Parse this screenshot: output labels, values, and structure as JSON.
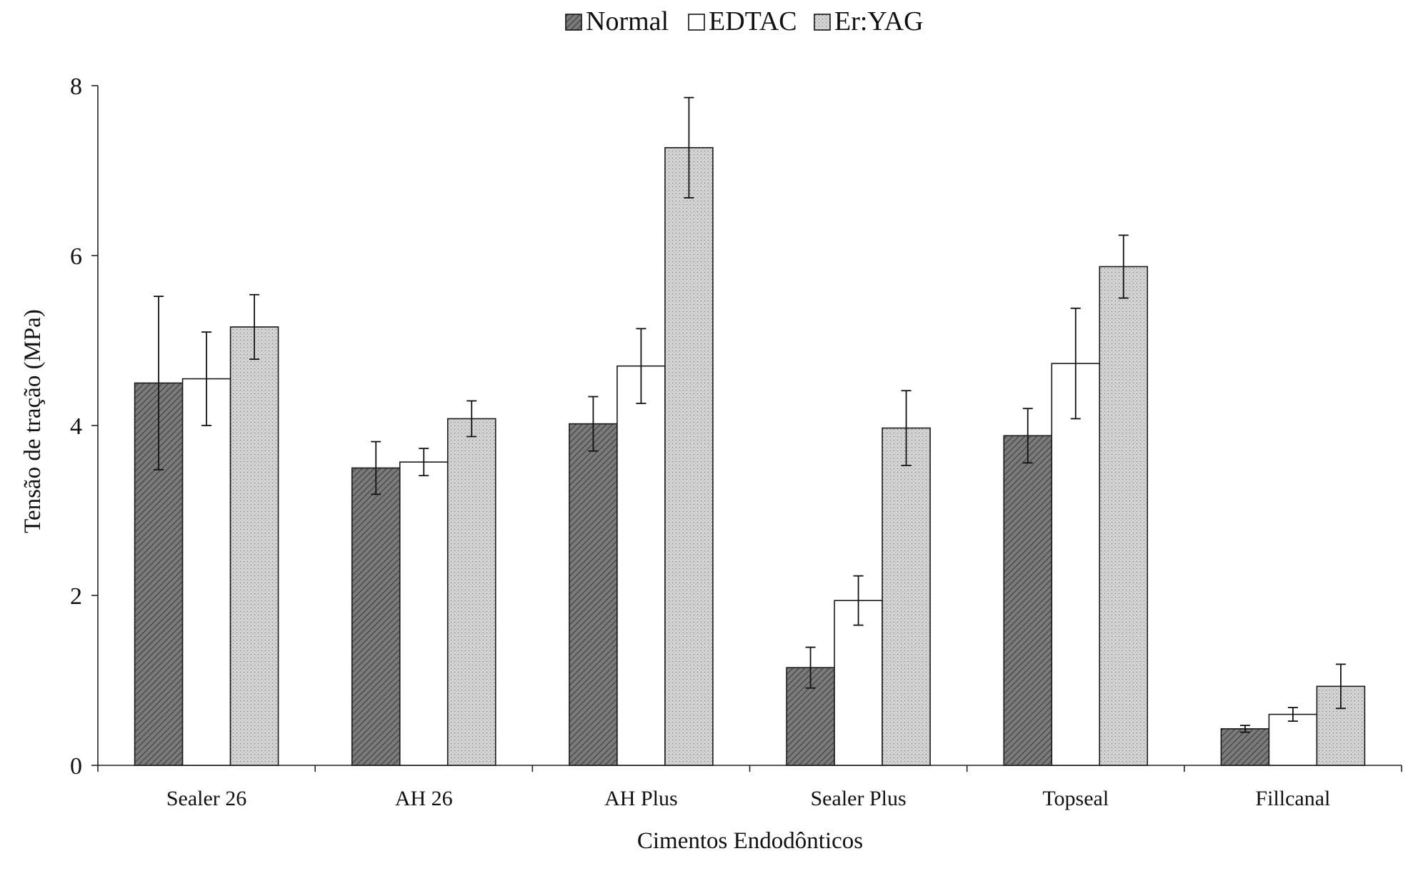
{
  "chart_data": {
    "type": "bar",
    "title": "",
    "xlabel": "Cimentos Endodônticos",
    "ylabel": "Tensão de tração (MPa)",
    "ylim": [
      0,
      8
    ],
    "yticks": [
      "0",
      "2",
      "4",
      "6",
      "8"
    ],
    "grid": false,
    "legend_position": "top-center",
    "categories": [
      "Sealer 26",
      "AH 26",
      "AH Plus",
      "Sealer Plus",
      "Topseal",
      "Fillcanal"
    ],
    "series": [
      {
        "name": "Normal",
        "color": "#6e6e6e",
        "pattern": "dark-hatch",
        "values": [
          4.5,
          3.5,
          4.02,
          1.15,
          3.88,
          0.43
        ],
        "error": [
          1.02,
          0.31,
          0.32,
          0.24,
          0.32,
          0.04
        ]
      },
      {
        "name": "EDTAC",
        "color": "#ffffff",
        "pattern": "none",
        "values": [
          4.55,
          3.57,
          4.7,
          1.94,
          4.73,
          0.6
        ],
        "error": [
          0.55,
          0.16,
          0.44,
          0.29,
          0.65,
          0.08
        ]
      },
      {
        "name": "Er:YAG",
        "color": "#cfcfcf",
        "pattern": "light-dots",
        "values": [
          5.16,
          4.08,
          7.27,
          3.97,
          5.87,
          0.93
        ],
        "error": [
          0.38,
          0.21,
          0.59,
          0.44,
          0.37,
          0.26
        ]
      }
    ]
  }
}
